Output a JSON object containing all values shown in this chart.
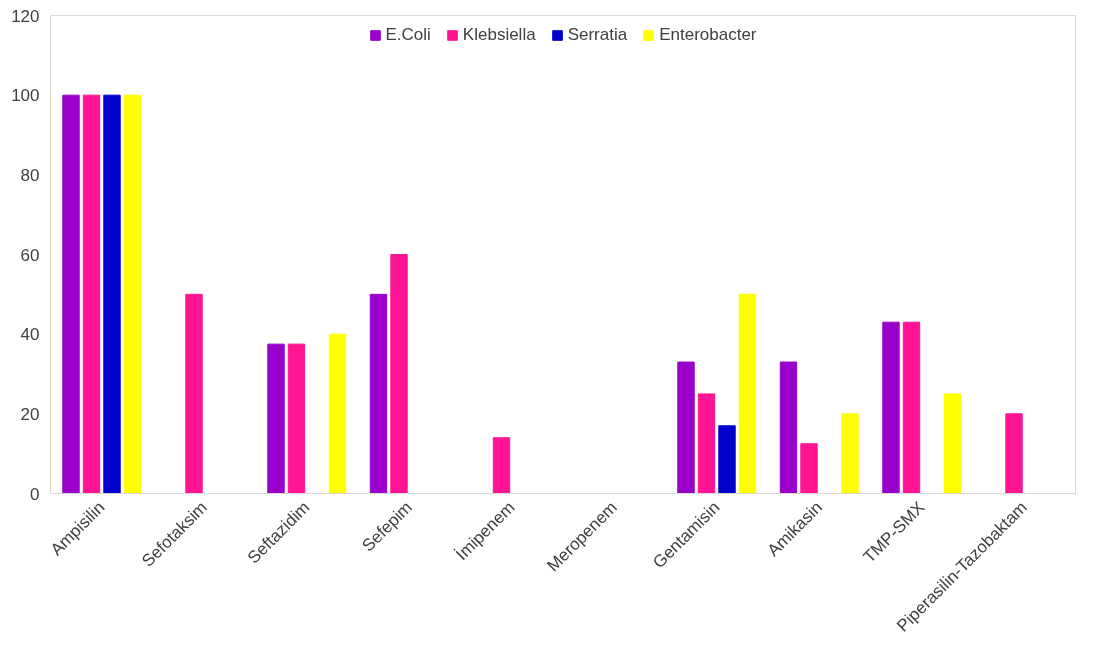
{
  "chart_data": {
    "type": "bar",
    "categories": [
      "Ampisilin",
      "Sefotaksim",
      "Seftazidim",
      "Sefepim",
      "İmipenem",
      "Meropenem",
      "Gentamisin",
      "Amikasin",
      "TMP-SMX",
      "Piperasilin-Tazobaktam"
    ],
    "series": [
      {
        "name": "E.Coli",
        "color": "#9900cc",
        "values": [
          100,
          null,
          37.5,
          50,
          null,
          null,
          33,
          33,
          43,
          null
        ]
      },
      {
        "name": "Klebsiella",
        "color": "#ff1493",
        "values": [
          100,
          50,
          37.5,
          60,
          14,
          null,
          25,
          12.5,
          43,
          20
        ]
      },
      {
        "name": "Serratia",
        "color": "#0000cc",
        "values": [
          100,
          null,
          null,
          null,
          null,
          null,
          17,
          null,
          null,
          null
        ]
      },
      {
        "name": "Enterobacter",
        "color": "#ffff00",
        "values": [
          100,
          null,
          40,
          null,
          null,
          null,
          50,
          20,
          25,
          null
        ]
      }
    ],
    "ylim": [
      0,
      120
    ],
    "yticks": [
      0,
      20,
      40,
      60,
      80,
      100,
      120
    ],
    "grid": false,
    "legend": "top"
  }
}
